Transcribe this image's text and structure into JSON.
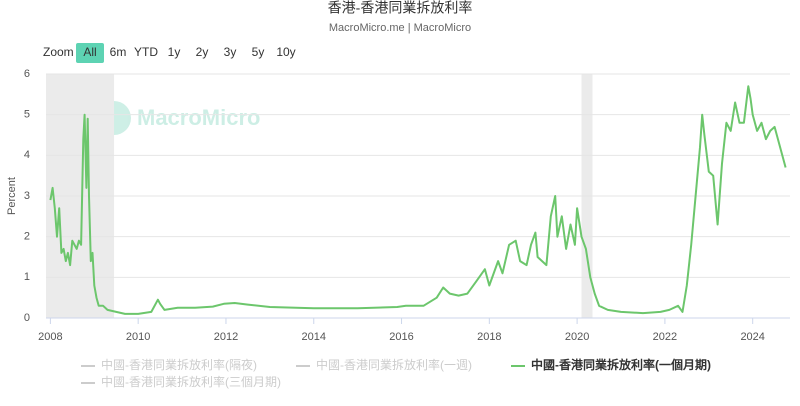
{
  "chart_data": {
    "type": "line",
    "title": "香港-香港同業拆放利率",
    "subtitle": "MacroMicro.me | MacroMicro",
    "watermark": "MacroMicro",
    "y_label": "Percent",
    "x": [
      2008.0,
      2008.05,
      2008.1,
      2008.15,
      2008.2,
      2008.25,
      2008.3,
      2008.35,
      2008.4,
      2008.45,
      2008.5,
      2008.55,
      2008.6,
      2008.65,
      2008.7,
      2008.75,
      2008.78,
      2008.82,
      2008.85,
      2008.88,
      2008.92,
      2008.96,
      2009.0,
      2009.05,
      2009.1,
      2009.2,
      2009.3,
      2009.5,
      2009.7,
      2010.0,
      2010.3,
      2010.45,
      2010.5,
      2010.6,
      2010.9,
      2011.3,
      2011.7,
      2011.95,
      2012.2,
      2012.5,
      2013.0,
      2014.0,
      2015.0,
      2015.9,
      2016.1,
      2016.5,
      2016.8,
      2016.95,
      2017.1,
      2017.3,
      2017.5,
      2017.7,
      2017.9,
      2018.0,
      2018.2,
      2018.3,
      2018.45,
      2018.6,
      2018.7,
      2018.85,
      2018.95,
      2019.05,
      2019.1,
      2019.3,
      2019.4,
      2019.5,
      2019.55,
      2019.65,
      2019.75,
      2019.85,
      2019.95,
      2020.0,
      2020.1,
      2020.2,
      2020.3,
      2020.4,
      2020.5,
      2020.7,
      2021.0,
      2021.5,
      2021.9,
      2022.1,
      2022.3,
      2022.4,
      2022.5,
      2022.6,
      2022.7,
      2022.8,
      2022.85,
      2022.9,
      2023.0,
      2023.1,
      2023.2,
      2023.3,
      2023.4,
      2023.5,
      2023.6,
      2023.7,
      2023.8,
      2023.9,
      2023.95,
      2024.0,
      2024.1,
      2024.2,
      2024.3,
      2024.4,
      2024.5,
      2024.6,
      2024.7,
      2024.75
    ],
    "series": [
      {
        "name": "中國-香港同業拆放利率(隔夜)",
        "color": "#7cb5ec",
        "visible": false
      },
      {
        "name": "中國-香港同業拆放利率(一週)",
        "color": "#434348",
        "visible": false
      },
      {
        "name": "中國-香港同業拆放利率(一個月期)",
        "color": "#6cc66c",
        "visible": true,
        "values": [
          2.9,
          3.2,
          2.7,
          2.0,
          2.7,
          1.6,
          1.7,
          1.4,
          1.6,
          1.3,
          1.9,
          1.8,
          1.7,
          1.9,
          1.8,
          4.4,
          5.0,
          3.2,
          4.9,
          3.0,
          1.4,
          1.6,
          0.8,
          0.5,
          0.3,
          0.3,
          0.2,
          0.15,
          0.1,
          0.1,
          0.15,
          0.45,
          0.35,
          0.2,
          0.25,
          0.25,
          0.28,
          0.35,
          0.37,
          0.33,
          0.27,
          0.24,
          0.24,
          0.27,
          0.3,
          0.3,
          0.5,
          0.75,
          0.6,
          0.55,
          0.6,
          0.9,
          1.2,
          0.8,
          1.4,
          1.1,
          1.8,
          1.9,
          1.4,
          1.3,
          1.8,
          2.1,
          1.5,
          1.3,
          2.5,
          3.0,
          2.0,
          2.5,
          1.7,
          2.3,
          1.8,
          2.7,
          2.0,
          1.7,
          1.0,
          0.6,
          0.3,
          0.2,
          0.15,
          0.12,
          0.15,
          0.2,
          0.3,
          0.15,
          0.8,
          1.8,
          3.0,
          4.2,
          5.0,
          4.5,
          3.6,
          3.5,
          2.3,
          3.8,
          4.8,
          4.6,
          5.3,
          4.8,
          4.8,
          5.7,
          5.4,
          5.0,
          4.6,
          4.8,
          4.4,
          4.6,
          4.7,
          4.3,
          3.9,
          3.7
        ]
      },
      {
        "name": "中國-香港同業拆放利率(三個月期)",
        "color": "#f7a35c",
        "visible": false
      }
    ],
    "shaded_ranges": [
      [
        2007.9,
        2009.45
      ],
      [
        2020.1,
        2020.35
      ]
    ],
    "xlim": [
      2007.9,
      2024.85
    ],
    "xticks": [
      2008,
      2010,
      2012,
      2014,
      2016,
      2018,
      2020,
      2022,
      2024
    ],
    "ylim": [
      0,
      6
    ],
    "yticks": [
      0,
      1,
      2,
      3,
      4,
      5,
      6
    ],
    "grid": true,
    "range_selector": {
      "label": "Zoom",
      "buttons": [
        "All",
        "6m",
        "YTD",
        "1y",
        "2y",
        "3y",
        "5y",
        "10y"
      ],
      "selected": 0
    }
  }
}
